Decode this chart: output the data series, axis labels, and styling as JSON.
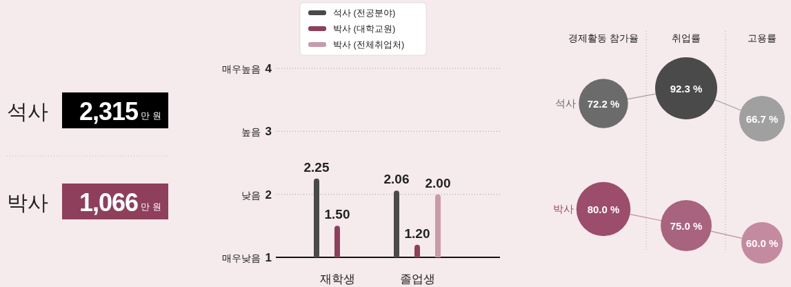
{
  "chart_data": [
    {
      "type": "other",
      "categories": [
        "석사",
        "박사"
      ],
      "value_labels": [
        "2,315",
        "1,066"
      ],
      "colors": [
        "#000000",
        "#8e3f5c"
      ],
      "annotations": [
        "만 원"
      ]
    },
    {
      "type": "bar",
      "categories": [
        "재학생",
        "졸업생"
      ],
      "series": [
        {
          "name": "석사 (전공분야)",
          "color": "#4a4a4a",
          "values": [
            2.25,
            2.06
          ],
          "value_labels": [
            "2.25",
            "2.06"
          ]
        },
        {
          "name": "박사 (대학교원)",
          "color": "#8e3f5c",
          "values": [
            1.5,
            1.2
          ],
          "value_labels": [
            "1.50",
            "1.20"
          ]
        },
        {
          "name": "박사 (전체취업처)",
          "color": "#c99aa9",
          "values": [
            null,
            2.0
          ],
          "value_labels": [
            null,
            "2.00"
          ]
        }
      ],
      "ylim": [
        1,
        4
      ],
      "yticks": [
        1,
        2,
        3,
        4
      ],
      "annotations": [
        "매우낮음",
        "낮음",
        "높음",
        "매우높음"
      ],
      "grid": "y",
      "legend": "top"
    },
    {
      "type": "other",
      "categories": [
        "경제활동 참가율",
        "취업률",
        "고용률"
      ],
      "series": [
        {
          "name": "석사",
          "colors": [
            "#6b6b6b",
            "#4a4a4a",
            "#a0a0a0"
          ],
          "values": [
            72.2,
            92.3,
            66.7
          ],
          "value_labels": [
            "72.2 %",
            "92.3 %",
            "66.7 %"
          ]
        },
        {
          "name": "박사",
          "colors": [
            "#9c4d6b",
            "#a8637f",
            "#c48a9f"
          ],
          "values": [
            80.0,
            75.0,
            60.0
          ],
          "value_labels": [
            "80.0 %",
            "75.0 %",
            "60.0 %"
          ]
        }
      ]
    }
  ]
}
